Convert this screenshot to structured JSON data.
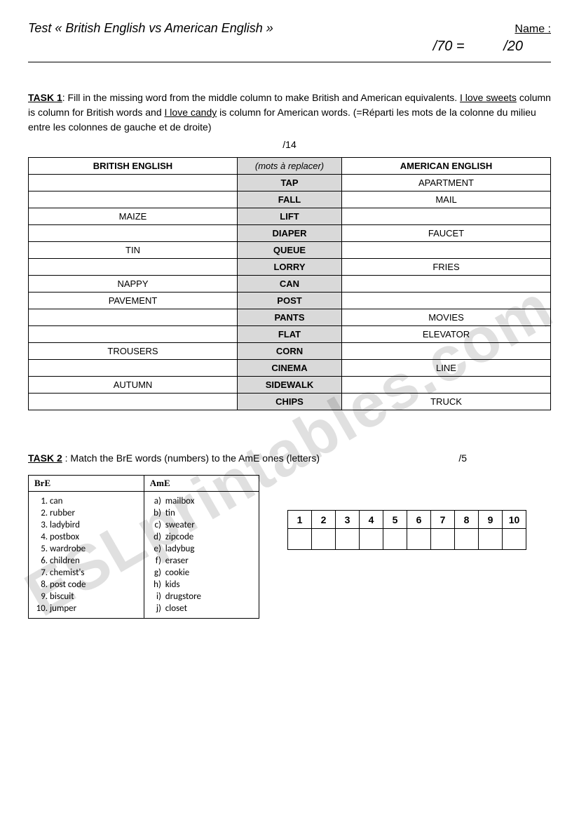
{
  "header": {
    "title": "Test « British English vs American English »",
    "name_label": "Name :",
    "score_left": "/70 =",
    "score_right": "/20"
  },
  "task1": {
    "label": "TASK 1",
    "intro_part1": ": Fill in the missing word from the middle column to make British and American equivalents. ",
    "u1": "I love sweets",
    "intro_part2": " column is column for British words and ",
    "u2": "I love candy",
    "intro_part3": " is column for American words.  (=Réparti les mots de la colonne du milieu entre les colonnes de gauche et de droite)",
    "score": "/14",
    "headers": {
      "col1": "BRITISH ENGLISH",
      "col2": "(mots à replacer)",
      "col3": "AMERICAN ENGLISH"
    },
    "rows": [
      {
        "b": "",
        "m": "TAP",
        "a": "APARTMENT"
      },
      {
        "b": "",
        "m": "FALL",
        "a": "MAIL"
      },
      {
        "b": "MAIZE",
        "m": "LIFT",
        "a": ""
      },
      {
        "b": "",
        "m": "DIAPER",
        "a": "FAUCET"
      },
      {
        "b": "TIN",
        "m": "QUEUE",
        "a": ""
      },
      {
        "b": "",
        "m": "LORRY",
        "a": "FRIES"
      },
      {
        "b": "NAPPY",
        "m": "CAN",
        "a": ""
      },
      {
        "b": "PAVEMENT",
        "m": "POST",
        "a": ""
      },
      {
        "b": "",
        "m": "PANTS",
        "a": "MOVIES"
      },
      {
        "b": "",
        "m": "FLAT",
        "a": "ELEVATOR"
      },
      {
        "b": "TROUSERS",
        "m": "CORN",
        "a": ""
      },
      {
        "b": "",
        "m": "CINEMA",
        "a": "LINE"
      },
      {
        "b": "AUTUMN",
        "m": "SIDEWALK",
        "a": ""
      },
      {
        "b": "",
        "m": "CHIPS",
        "a": "TRUCK"
      }
    ]
  },
  "task2": {
    "label": "TASK 2",
    "intro": " : Match the BrE words  (numbers) to the AmE ones  (letters)",
    "score": "/5",
    "headers": {
      "col1": "BrE",
      "col2": "AmE"
    },
    "bre": [
      "can",
      "rubber",
      "ladybird",
      "postbox",
      "wardrobe",
      "children",
      "chemist's",
      "post code",
      "biscuit",
      "jumper"
    ],
    "ame": [
      "mailbox",
      "tin",
      "sweater",
      "zipcode",
      "ladybug",
      "eraser",
      "cookie",
      "kids",
      "drugstore",
      "closet"
    ],
    "answer_headers": [
      "1",
      "2",
      "3",
      "4",
      "5",
      "6",
      "7",
      "8",
      "9",
      "10"
    ]
  },
  "watermark": "ESLprintables.com"
}
